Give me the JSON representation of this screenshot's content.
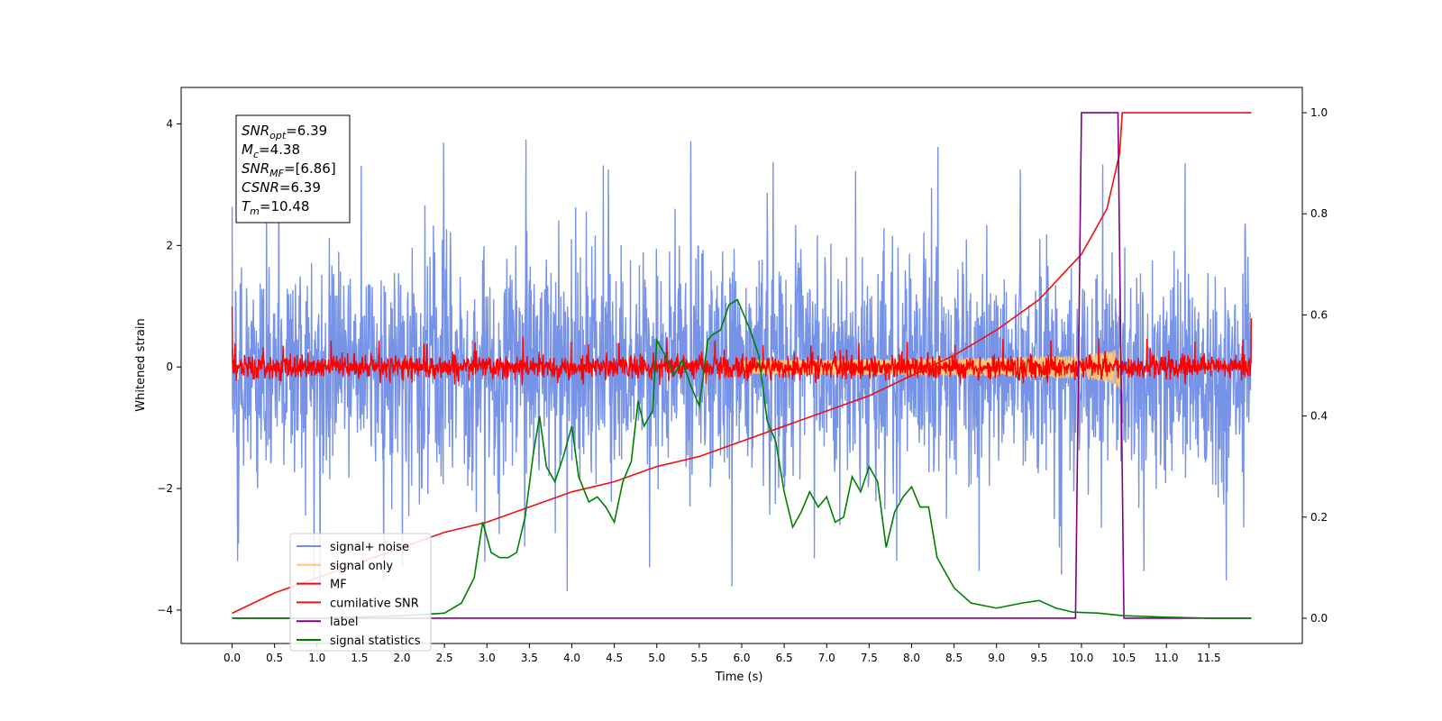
{
  "chart_data": {
    "type": "line",
    "xlabel": "Time (s)",
    "ylabel": "Whitened strain",
    "xlim": [
      -0.6,
      12.6
    ],
    "ylim": [
      -4.55,
      4.6
    ],
    "ylim_right": [
      -0.05,
      1.05
    ],
    "x_ticks": [
      "0.0",
      "0.5",
      "1.0",
      "1.5",
      "2.0",
      "2.5",
      "3.0",
      "3.5",
      "4.0",
      "4.5",
      "5.0",
      "5.5",
      "6.0",
      "6.5",
      "7.0",
      "7.5",
      "8.0",
      "8.5",
      "9.0",
      "9.5",
      "10.0",
      "10.5",
      "11.0",
      "11.5"
    ],
    "y_ticks_left": [
      "4",
      "2",
      "0",
      "−2",
      "−4"
    ],
    "y_ticks_right": [
      "1.0",
      "0.8",
      "0.6",
      "0.4",
      "0.2",
      "0.0"
    ],
    "legend_position": "lower-left",
    "annotation": {
      "lines": [
        {
          "main": "SNR",
          "sub": "opt",
          "value": "=6.39"
        },
        {
          "main": "M",
          "sub": "c",
          "value": "=4.38"
        },
        {
          "main": "SNR",
          "sub": "MF",
          "value": "=[6.86]"
        },
        {
          "main": "CSNR",
          "sub": "",
          "value": "=6.39"
        },
        {
          "main": "T",
          "sub": "m",
          "value": "=10.48"
        }
      ]
    },
    "series": [
      {
        "name": "signal+ noise",
        "color": "#6f8de6",
        "axis": "left",
        "time_range": [
          0,
          12
        ],
        "mean": 0,
        "band": [
          -2.2,
          2.2
        ],
        "extremes": [
          -3.7,
          3.75
        ]
      },
      {
        "name": "signal only",
        "color": "#ffc57a",
        "axis": "left",
        "time_range": [
          0,
          12
        ],
        "peak_time": 10.48,
        "peak_amplitude": 0.45
      },
      {
        "name": "MF",
        "color": "#ff0000",
        "axis": "left",
        "time_range": [
          0,
          12
        ],
        "mean": 0,
        "band": [
          -0.2,
          0.2
        ],
        "extremes": [
          -0.3,
          0.5
        ],
        "edge_values": [
          1.0,
          0.8
        ]
      },
      {
        "name": "cumilative SNR",
        "color": "#ee1111",
        "axis": "right",
        "x": [
          0.0,
          0.5,
          1.0,
          1.5,
          2.0,
          2.5,
          3.0,
          3.5,
          4.0,
          4.5,
          5.0,
          5.5,
          6.0,
          6.5,
          7.0,
          7.5,
          8.0,
          8.5,
          9.0,
          9.5,
          10.0,
          10.3,
          10.45,
          10.48,
          12.0
        ],
        "y": [
          0.01,
          0.05,
          0.08,
          0.11,
          0.14,
          0.17,
          0.19,
          0.22,
          0.25,
          0.27,
          0.3,
          0.32,
          0.35,
          0.38,
          0.41,
          0.44,
          0.48,
          0.52,
          0.57,
          0.63,
          0.72,
          0.81,
          0.92,
          1.0,
          1.0
        ]
      },
      {
        "name": "label",
        "color": "#800080",
        "axis": "right",
        "x": [
          0.0,
          9.93,
          10.0,
          10.43,
          10.5,
          12.0
        ],
        "y": [
          0.0,
          0.0,
          1.0,
          1.0,
          0.0,
          0.0
        ]
      },
      {
        "name": "signal statistics",
        "color": "#008000",
        "axis": "right",
        "x": [
          0.0,
          1.0,
          2.0,
          2.5,
          2.7,
          2.85,
          2.95,
          3.05,
          3.15,
          3.25,
          3.35,
          3.45,
          3.55,
          3.62,
          3.7,
          3.8,
          3.9,
          4.0,
          4.08,
          4.2,
          4.3,
          4.4,
          4.5,
          4.6,
          4.7,
          4.78,
          4.85,
          4.95,
          5.0,
          5.1,
          5.2,
          5.3,
          5.4,
          5.5,
          5.6,
          5.65,
          5.75,
          5.85,
          5.95,
          6.0,
          6.1,
          6.2,
          6.3,
          6.4,
          6.5,
          6.6,
          6.7,
          6.8,
          6.9,
          7.0,
          7.1,
          7.2,
          7.3,
          7.4,
          7.5,
          7.6,
          7.7,
          7.8,
          7.9,
          8.0,
          8.1,
          8.2,
          8.3,
          8.4,
          8.5,
          8.7,
          9.0,
          9.3,
          9.5,
          9.7,
          9.9,
          10.2,
          10.5,
          11.0,
          11.5,
          12.0
        ],
        "y": [
          0.0,
          0.0,
          0.005,
          0.01,
          0.03,
          0.08,
          0.19,
          0.13,
          0.12,
          0.12,
          0.13,
          0.2,
          0.33,
          0.4,
          0.3,
          0.27,
          0.32,
          0.38,
          0.28,
          0.23,
          0.24,
          0.22,
          0.19,
          0.27,
          0.31,
          0.43,
          0.38,
          0.41,
          0.55,
          0.52,
          0.48,
          0.51,
          0.46,
          0.42,
          0.55,
          0.56,
          0.57,
          0.62,
          0.63,
          0.61,
          0.57,
          0.52,
          0.39,
          0.35,
          0.25,
          0.18,
          0.21,
          0.25,
          0.22,
          0.24,
          0.19,
          0.2,
          0.28,
          0.25,
          0.3,
          0.27,
          0.14,
          0.21,
          0.24,
          0.26,
          0.22,
          0.22,
          0.12,
          0.09,
          0.06,
          0.03,
          0.02,
          0.03,
          0.035,
          0.02,
          0.012,
          0.01,
          0.005,
          0.002,
          0.0,
          0.0
        ]
      }
    ]
  }
}
